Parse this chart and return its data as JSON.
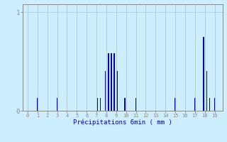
{
  "title": "",
  "xlabel": "Précipitations 6min ( mm )",
  "ylabel": "",
  "background_color": "#cceeff",
  "bar_color": "#0000bb",
  "grid_color": "#aacccc",
  "axis_color": "#888888",
  "text_color": "#0000bb",
  "xlim": [
    -0.5,
    19.8
  ],
  "ylim": [
    0,
    1.08
  ],
  "yticks": [
    0,
    1
  ],
  "xticks": [
    0,
    1,
    2,
    3,
    4,
    5,
    6,
    7,
    8,
    9,
    10,
    11,
    12,
    13,
    14,
    15,
    16,
    17,
    18,
    19
  ],
  "bar_positions": [
    1,
    3,
    7.1,
    7.4,
    7.9,
    8.2,
    8.5,
    8.8,
    9.1,
    9.9,
    11,
    15,
    17,
    17.9,
    18.2,
    18.5,
    19
  ],
  "bar_heights": [
    0.13,
    0.13,
    0.13,
    0.13,
    0.4,
    0.58,
    0.58,
    0.58,
    0.4,
    0.13,
    0.13,
    0.13,
    0.13,
    0.75,
    0.4,
    0.13,
    0.13
  ],
  "bar_width": 0.12
}
